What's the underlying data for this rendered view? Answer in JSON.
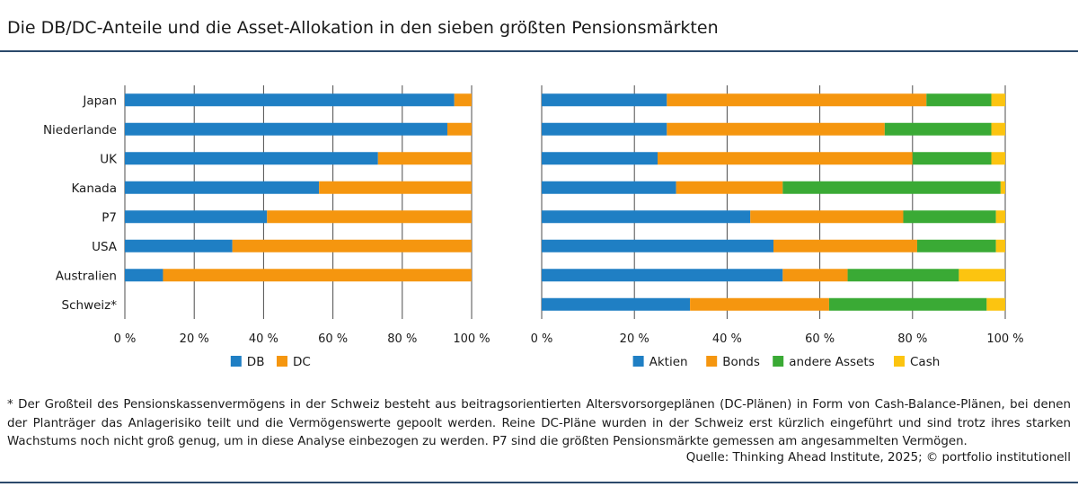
{
  "title": "Die DB/DC-Anteile und die Asset-Allokation in den sieben größten Pensionsmärkten",
  "colors": {
    "blue": "#1f7fc4",
    "orange": "#f5960f",
    "green": "#3aaa35",
    "yellow": "#fcc410",
    "grid": "#4d4d4d",
    "rule": "#2b4a6b"
  },
  "chart_data": [
    {
      "type": "bar",
      "orientation": "horizontal",
      "stacked": true,
      "categories": [
        "Japan",
        "Niederlande",
        "UK",
        "Kanada",
        "P7",
        "USA",
        "Australien",
        "Schweiz*"
      ],
      "series": [
        {
          "name": "DB",
          "color": "#1f7fc4",
          "values": [
            95,
            93,
            73,
            56,
            41,
            31,
            11,
            null
          ]
        },
        {
          "name": "DC",
          "color": "#f5960f",
          "values": [
            5,
            7,
            27,
            44,
            59,
            69,
            89,
            null
          ]
        }
      ],
      "xlim": [
        0,
        100
      ],
      "xticks": [
        "0 %",
        "20 %",
        "40 %",
        "60 %",
        "80 %",
        "100 %"
      ],
      "grid": true,
      "legend": "bottom-center"
    },
    {
      "type": "bar",
      "orientation": "horizontal",
      "stacked": true,
      "categories": [
        "Japan",
        "Niederlande",
        "UK",
        "Kanada",
        "P7",
        "USA",
        "Australien",
        "Schweiz*"
      ],
      "series": [
        {
          "name": "Aktien",
          "color": "#1f7fc4",
          "values": [
            27,
            27,
            25,
            29,
            45,
            50,
            52,
            32
          ]
        },
        {
          "name": "Bonds",
          "color": "#f5960f",
          "values": [
            56,
            47,
            55,
            23,
            33,
            31,
            14,
            30
          ]
        },
        {
          "name": "andere Assets",
          "color": "#3aaa35",
          "values": [
            14,
            23,
            17,
            47,
            20,
            17,
            24,
            34
          ]
        },
        {
          "name": "Cash",
          "color": "#fcc410",
          "values": [
            3,
            3,
            3,
            1,
            2,
            2,
            10,
            4
          ]
        }
      ],
      "xlim": [
        0,
        100
      ],
      "xticks": [
        "0 %",
        "20 %",
        "40 %",
        "60 %",
        "80 %",
        "100 %"
      ],
      "grid": true,
      "legend": "bottom-center"
    }
  ],
  "footnote": "* Der Großteil des Pensionskassenvermögens in der Schweiz besteht aus beitragsorientierten Altersvorsorgeplänen (DC-Plänen) in Form von Cash-Balance-Plänen, bei denen der Planträger das Anlagerisiko teilt und die Vermögenswerte gepoolt werden. Reine DC-Pläne wurden in der Schweiz erst kürzlich eingeführt und sind trotz ihres starken Wachstums noch nicht groß genug, um in diese Analyse einbezogen zu werden. P7 sind die größten Pensionsmärkte gemessen am angesammelten Vermögen.",
  "source": "Quelle: Thinking Ahead Institute, 2025; © portfolio institutionell"
}
